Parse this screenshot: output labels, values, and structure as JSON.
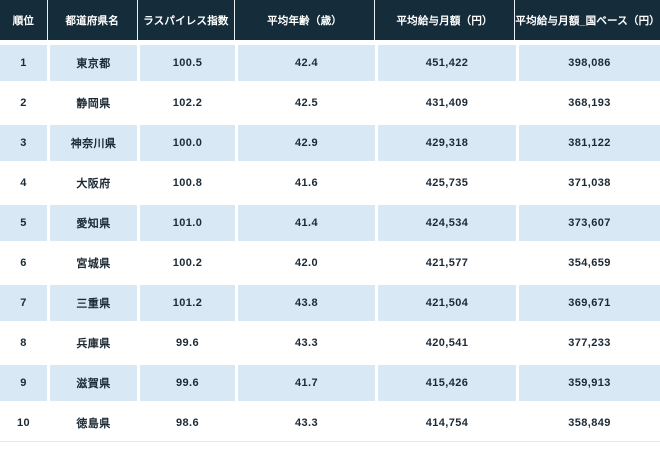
{
  "chart_data": {
    "type": "table",
    "columns": [
      "順位",
      "都道府県名",
      "ラスパイレス指数",
      "平均年齢（歳）",
      "平均給与月額（円）",
      "平均給与月額_国ベース（円）"
    ],
    "rows": [
      [
        "1",
        "東京都",
        "100.5",
        "42.4",
        "451,422",
        "398,086"
      ],
      [
        "2",
        "静岡県",
        "102.2",
        "42.5",
        "431,409",
        "368,193"
      ],
      [
        "3",
        "神奈川県",
        "100.0",
        "42.9",
        "429,318",
        "381,122"
      ],
      [
        "4",
        "大阪府",
        "100.8",
        "41.6",
        "425,735",
        "371,038"
      ],
      [
        "5",
        "愛知県",
        "101.0",
        "41.4",
        "424,534",
        "373,607"
      ],
      [
        "6",
        "宮城県",
        "100.2",
        "42.0",
        "421,577",
        "354,659"
      ],
      [
        "7",
        "三重県",
        "101.2",
        "43.8",
        "421,504",
        "369,671"
      ],
      [
        "8",
        "兵庫県",
        "99.6",
        "43.3",
        "420,541",
        "377,233"
      ],
      [
        "9",
        "滋賀県",
        "99.6",
        "41.7",
        "415,426",
        "359,913"
      ],
      [
        "10",
        "徳島県",
        "98.6",
        "43.3",
        "414,754",
        "358,849"
      ]
    ],
    "legend_position": "none",
    "grid": "row-striped"
  },
  "colors": {
    "header_bg": "#152d3b",
    "header_text": "#ffffff",
    "row_stripe_bg": "#d9e8f5",
    "row_plain_bg": "#ffffff",
    "cell_text": "#1c2a35"
  }
}
